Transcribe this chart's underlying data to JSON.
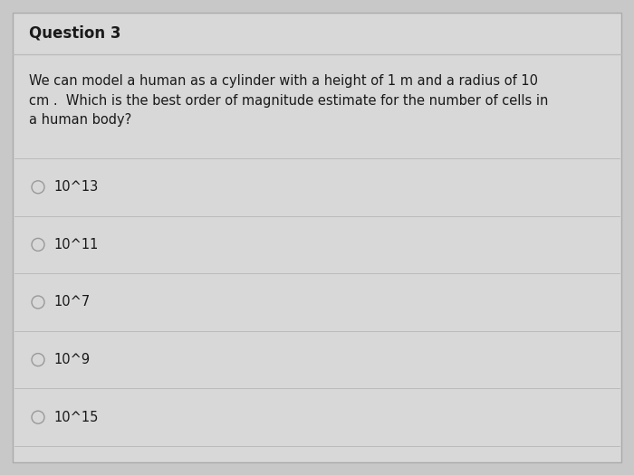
{
  "title": "Question 3",
  "question_text": "We can model a human as a cylinder with a height of 1 m and a radius of 10\ncm .  Which is the best order of magnitude estimate for the number of cells in\na human body?",
  "options": [
    "10^13",
    "10^11",
    "10^7",
    "10^9",
    "10^15"
  ],
  "outer_bg_color": "#c8c8c8",
  "card_color": "#d8d8d8",
  "title_bg_color": "#d0d0d0",
  "border_color": "#aaaaaa",
  "title_fontsize": 12,
  "question_fontsize": 10.5,
  "option_fontsize": 10.5,
  "text_color": "#1a1a1a",
  "circle_color": "#999999",
  "line_color": "#bbbbbb",
  "title_line_color": "#bbbbbb"
}
